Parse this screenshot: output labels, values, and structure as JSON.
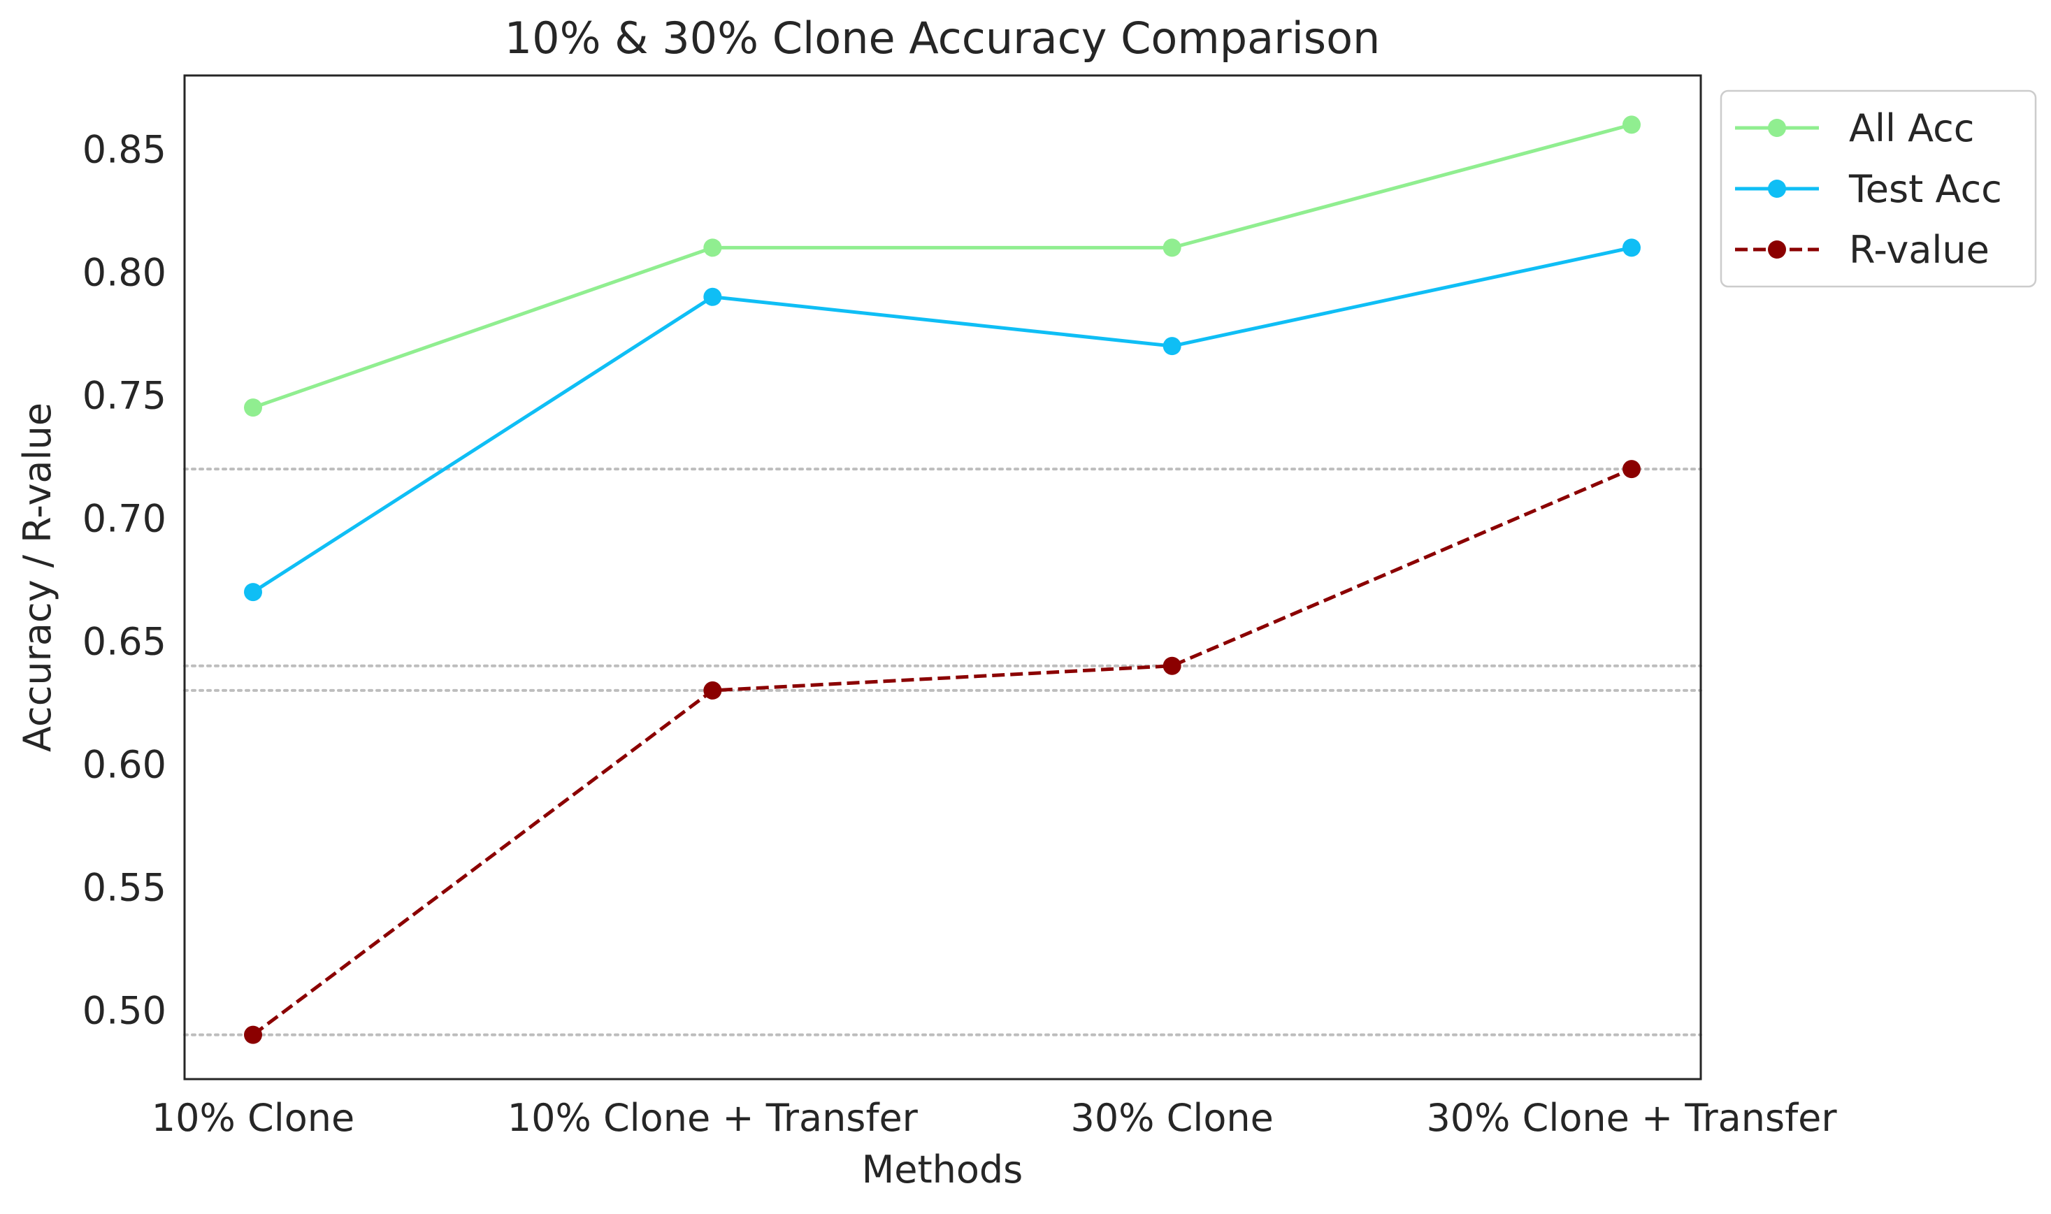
{
  "chart_data": {
    "type": "line",
    "title": "10% & 30% Clone Accuracy Comparison",
    "xlabel": "Methods",
    "ylabel": "Accuracy / R-value",
    "categories": [
      "10% Clone",
      "10% Clone + Transfer",
      "30% Clone",
      "30% Clone + Transfer"
    ],
    "ylim": [
      0.472,
      0.88
    ],
    "yticks": [
      0.5,
      0.55,
      0.6,
      0.65,
      0.7,
      0.75,
      0.8,
      0.85
    ],
    "ytick_labels": [
      "0.50",
      "0.55",
      "0.60",
      "0.65",
      "0.70",
      "0.75",
      "0.80",
      "0.85"
    ],
    "grid": false,
    "reference_lines": [
      0.49,
      0.63,
      0.64,
      0.72
    ],
    "legend_position": "outside-top-right",
    "series": [
      {
        "name": "All Acc",
        "values": [
          0.745,
          0.81,
          0.81,
          0.86
        ],
        "color": "#90EE90",
        "linestyle": "solid",
        "marker": "circle"
      },
      {
        "name": "Test Acc",
        "values": [
          0.67,
          0.79,
          0.77,
          0.81
        ],
        "color": "#0FBEF5",
        "linestyle": "solid",
        "marker": "circle"
      },
      {
        "name": "R-value",
        "values": [
          0.49,
          0.63,
          0.64,
          0.72
        ],
        "color": "#8B0000",
        "linestyle": "dashed",
        "marker": "circle"
      }
    ],
    "colors": {
      "reference_line": "#BDBDBD",
      "axis": "#262626",
      "text": "#262626"
    }
  }
}
